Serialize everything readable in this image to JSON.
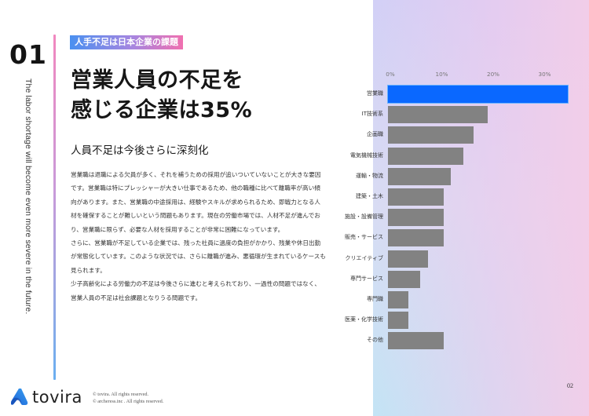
{
  "section": {
    "number": "01",
    "vertical_caption": "The labor shortage will become even more severe in the future.",
    "badge": "人手不足は日本企業の課題"
  },
  "title": {
    "line1": "営業人員の不足を",
    "line2": "感じる企業は35%"
  },
  "subtitle": "人員不足は今後さらに深刻化",
  "body": {
    "paragraphs": [
      "営業職は退職による欠員が多く、それを補うための採用が追いついていないことが大きな要因です。営業職は特にプレッシャーが大きい仕事であるため、他の職種に比べて離職率が高い傾向があります。また、営業職の中途採用は、経験やスキルが求められるため、即戦力となる人材を確保することが難しいという問題もあります。現在の労働市場では、人材不足が進んでおり、営業職に限らず、必要な人材を採用することが非常に困難になっています。",
      "さらに、営業職が不足している企業では、残った社員に過度の負担がかかり、残業や休日出勤が常態化しています。このような状況では、さらに離職が進み、悪循環が生まれているケースも見られます。",
      "少子高齢化による労働力の不足は今後さらに進むと考えられており、一過性の問題ではなく、営業人員の不足は社会課題となりうる問題です。"
    ]
  },
  "footer": {
    "logo_text": "tovira",
    "copyright_lines": [
      "© tovira. All rights reserved.",
      "© archeress.inc . All rights reserved."
    ],
    "page_number": "02"
  },
  "colors": {
    "highlight_bar": "#0a68ff",
    "default_bar": "#828282",
    "badge_gradient_start": "#4a90f0",
    "badge_gradient_end": "#f070b0"
  },
  "chart_data": {
    "type": "bar",
    "orientation": "horizontal",
    "title": "",
    "xlabel": "",
    "ylabel": "",
    "x_ticks": [
      "0%",
      "10%",
      "20%",
      "30%"
    ],
    "xlim": [
      0,
      35
    ],
    "grid": false,
    "legend": null,
    "tick_position": "top",
    "categories": [
      "営業職",
      "IT技術系",
      "企画職",
      "電気機械技術",
      "運輸・物流",
      "建築・土木",
      "施設・設備管理",
      "販売・サービス",
      "クリエイティブ",
      "専門サービス",
      "専門職",
      "医薬・化学技術",
      "その他"
    ],
    "values": [
      35.0,
      19.4,
      16.6,
      14.6,
      12.2,
      10.8,
      10.8,
      10.8,
      7.8,
      6.2,
      4.0,
      4.0,
      10.8
    ],
    "highlight_index": 0,
    "unit": "%"
  }
}
